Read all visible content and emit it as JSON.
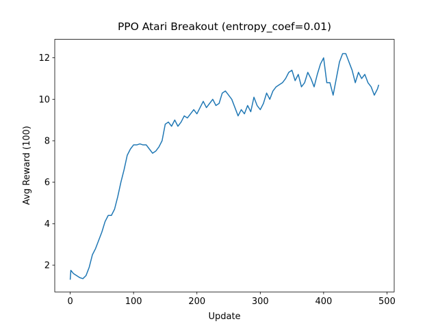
{
  "chart_data": {
    "type": "line",
    "title": "PPO Atari Breakout (entropy_coef=0.01)",
    "x_label": "Update",
    "y_label": "Avg Reward (100)",
    "xlim": [
      -24.4,
      511.4
    ],
    "ylim": [
      0.71,
      12.89
    ],
    "xticks": [
      0,
      100,
      200,
      300,
      400,
      500
    ],
    "yticks": [
      2,
      4,
      6,
      8,
      10,
      12
    ],
    "grid": false,
    "series": [
      {
        "name": "Avg Reward",
        "color": "#1f77b4",
        "x": [
          0,
          1,
          5,
          10,
          15,
          20,
          25,
          30,
          35,
          40,
          45,
          50,
          55,
          60,
          65,
          70,
          75,
          80,
          85,
          90,
          95,
          100,
          105,
          110,
          115,
          120,
          125,
          130,
          135,
          140,
          145,
          150,
          155,
          160,
          165,
          170,
          175,
          180,
          185,
          190,
          195,
          200,
          205,
          210,
          215,
          220,
          225,
          230,
          235,
          240,
          245,
          250,
          255,
          260,
          265,
          270,
          275,
          280,
          285,
          290,
          295,
          300,
          305,
          310,
          315,
          320,
          325,
          330,
          335,
          340,
          345,
          350,
          355,
          360,
          365,
          370,
          375,
          380,
          385,
          390,
          395,
          400,
          405,
          410,
          415,
          420,
          425,
          430,
          435,
          440,
          445,
          450,
          455,
          460,
          465,
          470,
          475,
          480,
          485,
          487
        ],
        "values": [
          1.3,
          1.75,
          1.6,
          1.5,
          1.4,
          1.35,
          1.5,
          1.9,
          2.5,
          2.8,
          3.2,
          3.6,
          4.1,
          4.4,
          4.4,
          4.7,
          5.3,
          6.0,
          6.6,
          7.3,
          7.6,
          7.8,
          7.8,
          7.85,
          7.8,
          7.8,
          7.6,
          7.4,
          7.5,
          7.7,
          8.0,
          8.8,
          8.9,
          8.7,
          9.0,
          8.7,
          8.9,
          9.2,
          9.1,
          9.3,
          9.5,
          9.3,
          9.6,
          9.9,
          9.6,
          9.8,
          10.0,
          9.7,
          9.8,
          10.3,
          10.4,
          10.2,
          10.0,
          9.6,
          9.2,
          9.5,
          9.3,
          9.7,
          9.4,
          10.1,
          9.7,
          9.5,
          9.8,
          10.3,
          10.0,
          10.4,
          10.6,
          10.7,
          10.8,
          11.0,
          11.3,
          11.4,
          10.9,
          11.2,
          10.6,
          10.8,
          11.3,
          11.0,
          10.6,
          11.2,
          11.7,
          12.0,
          10.8,
          10.8,
          10.2,
          11.0,
          11.8,
          12.2,
          12.2,
          11.8,
          11.4,
          10.8,
          11.3,
          11.0,
          11.2,
          10.8,
          10.6,
          10.2,
          10.5,
          10.7
        ]
      }
    ]
  }
}
